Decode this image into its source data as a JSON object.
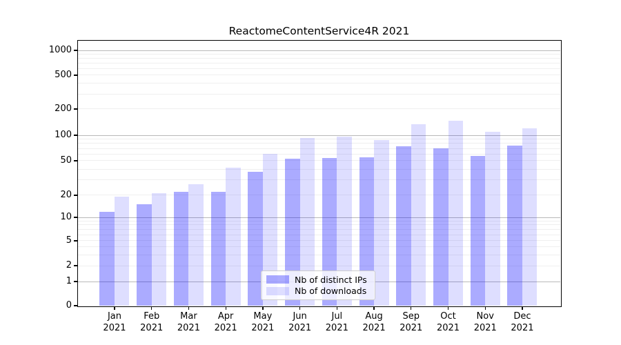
{
  "chart_data": {
    "type": "bar",
    "title": "ReactomeContentService4R 2021",
    "categories": [
      "Jan",
      "Feb",
      "Mar",
      "Apr",
      "May",
      "Jun",
      "Jul",
      "Aug",
      "Sep",
      "Oct",
      "Nov",
      "Dec"
    ],
    "year_label": "2021",
    "series": [
      {
        "name": "Nb of distinct IPs",
        "color": "rgba(0,0,255,0.33)",
        "values": [
          12,
          15,
          22,
          22,
          37,
          53,
          54,
          55,
          74,
          70,
          57,
          76
        ]
      },
      {
        "name": "Nb of downloads",
        "color": "rgba(0,0,255,0.13)",
        "values": [
          19,
          21,
          27,
          42,
          60,
          93,
          97,
          88,
          135,
          148,
          110,
          120
        ]
      }
    ],
    "yticks": [
      0,
      1,
      2,
      5,
      10,
      20,
      50,
      100,
      200,
      500,
      1000
    ],
    "yscale": "symlog",
    "ylim": [
      0,
      1130
    ],
    "xlabel": "",
    "ylabel": "",
    "grid": true,
    "legend_position": "lower center"
  }
}
